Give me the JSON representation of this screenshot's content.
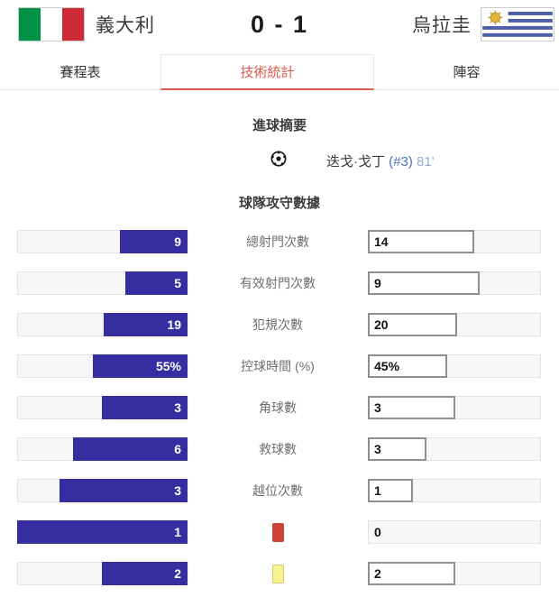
{
  "header": {
    "home": {
      "name": "義大利",
      "flag_icon": "italy-flag"
    },
    "score": "0 - 1",
    "away": {
      "name": "烏拉圭",
      "flag_icon": "uruguay-flag"
    }
  },
  "tabs": [
    {
      "label": "賽程表",
      "active": false
    },
    {
      "label": "技術統計",
      "active": true
    },
    {
      "label": "陣容",
      "active": false
    }
  ],
  "goal_summary": {
    "title": "進球摘要",
    "events": [
      {
        "icon": "soccer-ball-icon",
        "player": "迭戈·戈丁",
        "shirt_number": "(#3)",
        "minute": "81'"
      }
    ]
  },
  "team_stats": {
    "title": "球隊攻守數據",
    "rows": [
      {
        "label": "總射門次數",
        "home": "9",
        "away": "14"
      },
      {
        "label": "有效射門次數",
        "home": "5",
        "away": "9"
      },
      {
        "label": "犯規次數",
        "home": "19",
        "away": "20"
      },
      {
        "label": "控球時間 (%)",
        "home": "55%",
        "away": "45%"
      },
      {
        "label": "角球數",
        "home": "3",
        "away": "3"
      },
      {
        "label": "救球數",
        "home": "6",
        "away": "3"
      },
      {
        "label": "越位次數",
        "home": "3",
        "away": "1"
      },
      {
        "label_icon": "red-card-icon",
        "home": "1",
        "away": "0"
      },
      {
        "label_icon": "yellow-card-icon",
        "home": "2",
        "away": "2"
      }
    ]
  },
  "colors": {
    "accent_red": "#e2574d",
    "home_bar_blue": "#362da0",
    "red_card": "#cc4437",
    "yellow_card": "#f8f28f",
    "italy_green": "#009246",
    "italy_red": "#ce2b37",
    "uruguay_blue": "#4c61aa",
    "uruguay_sun": "#e3b53a"
  }
}
